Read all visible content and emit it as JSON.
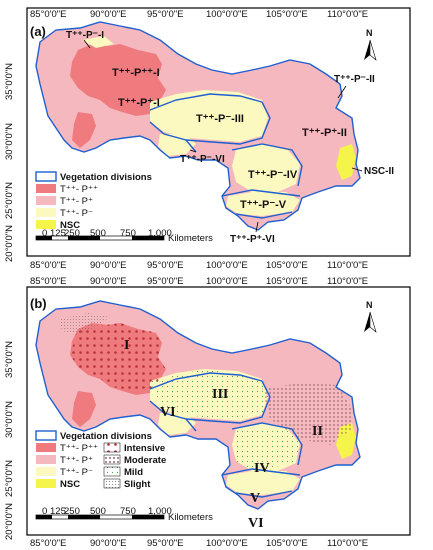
{
  "colors": {
    "intensive_pos": "#ef7b7f",
    "pos_pos": "#f5b8be",
    "pos_neg": "#fbf8c0",
    "nsc": "#f4f44a",
    "boundary": "#1f5fcf",
    "frame": "#000000"
  },
  "panel_a": {
    "label": "(a)",
    "x_ticks": [
      "85°0'0\"E",
      "90°0'0\"E",
      "95°0'0\"E",
      "100°0'0\"E",
      "105°0'0\"E",
      "110°0'0\"E"
    ],
    "y_ticks": [
      "35°0'0\"N",
      "30°0'0\"N",
      "25°0'0\"N",
      "20°0'0\"N"
    ],
    "region_labels": {
      "r1_small": "T⁺⁺-P⁻-I",
      "r1_big": "T⁺⁺-P⁺⁺-I",
      "r1_mid": "T⁺⁺-P⁺-I",
      "r3": "T⁺⁺-P⁻-III",
      "r2_top": "T⁺⁺-P⁻-II",
      "r2": "T⁺⁺-P⁺-II",
      "r6": "T⁺⁺-P⁻-VI",
      "r4": "T⁺⁺-P⁻-IV",
      "nsc2": "NSC-II",
      "r5": "T⁺⁺-P⁻-V",
      "r6b": "T⁺⁺-P⁺-VI"
    },
    "legend": {
      "title": "Vegetation divisions",
      "items": [
        "T⁺⁺- P⁺⁺",
        "T⁺⁺- P⁺",
        "T⁺⁺- P⁻",
        "NSC"
      ]
    },
    "scalebar": {
      "ticks": [
        "0",
        "125",
        "250",
        "500",
        "750",
        "1,000"
      ],
      "unit": "Kilometers"
    },
    "north": "N"
  },
  "panel_b": {
    "label": "(b)",
    "x_ticks": [
      "85°0'0\"E",
      "90°0'0\"E",
      "95°0'0\"E",
      "100°0'0\"E",
      "105°0'0\"E",
      "110°0'0\"E"
    ],
    "y_ticks": [
      "35°0'0\"N",
      "30°0'0\"N",
      "25°0'0\"N",
      "20°0'0\"N"
    ],
    "region_labels": {
      "I": "I",
      "II": "II",
      "III": "III",
      "IV": "IV",
      "V": "V",
      "VI_w": "VI",
      "VI_s": "VI"
    },
    "legend": {
      "title": "Vegetation divisions",
      "items": [
        "T⁺⁺- P⁺⁺",
        "T⁺⁺- P⁺",
        "T⁺⁺- P⁻",
        "NSC"
      ],
      "intensity": [
        "Intensive",
        "Moderate",
        "Mild",
        "Slight"
      ]
    },
    "scalebar": {
      "ticks": [
        "0",
        "125",
        "250",
        "500",
        "750",
        "1,000"
      ],
      "unit": "Kilometers"
    },
    "north": "N"
  }
}
